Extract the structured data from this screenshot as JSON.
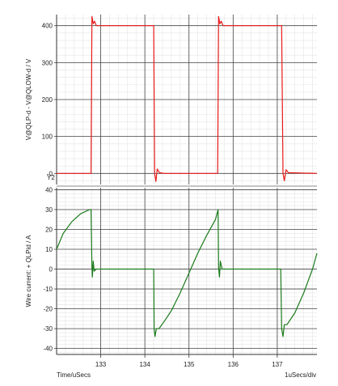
{
  "chart_data": [
    {
      "type": "line",
      "ylabel": "V@QLP-d - V@QLOW-d / V",
      "ylim": [
        -30,
        430
      ],
      "yticks": [
        400,
        300,
        200,
        100,
        0
      ],
      "ytick_labels": [
        "400",
        "300",
        "200",
        "100",
        "-0"
      ],
      "corner_label": "Y2",
      "grid": true,
      "series": [
        {
          "color": "#e8191a",
          "x": [
            132.0,
            132.78,
            132.8,
            132.83,
            132.86,
            132.9,
            133.0,
            134.2,
            134.22,
            134.25,
            134.28,
            134.33,
            134.45,
            135.65,
            135.67,
            135.7,
            135.73,
            135.77,
            135.9,
            137.1,
            137.13,
            137.16,
            137.2,
            137.25,
            137.9
          ],
          "y": [
            0,
            0,
            425,
            405,
            412,
            400,
            400,
            400,
            0,
            -22,
            12,
            2,
            0,
            0,
            425,
            405,
            412,
            400,
            400,
            400,
            0,
            -20,
            10,
            2,
            0
          ]
        }
      ]
    },
    {
      "type": "line",
      "ylabel": "Wire current: + QLPid / A",
      "ylim": [
        -43,
        41
      ],
      "yticks": [
        40,
        30,
        20,
        10,
        0,
        -10,
        -20,
        -30,
        -40
      ],
      "ytick_labels": [
        "40",
        "30",
        "20",
        "10",
        "0",
        "-10",
        "-20",
        "-30",
        "-40"
      ],
      "grid": true,
      "series": [
        {
          "color": "#1a7a1a",
          "x": [
            132.0,
            132.15,
            132.35,
            132.55,
            132.75,
            132.78,
            132.8,
            132.81,
            132.83,
            132.85,
            132.9,
            133.0,
            134.2,
            134.21,
            134.23,
            134.26,
            134.32,
            134.45,
            134.6,
            134.8,
            135.0,
            135.2,
            135.4,
            135.6,
            135.66,
            135.67,
            135.69,
            135.71,
            135.75,
            135.85,
            137.08,
            137.1,
            137.13,
            137.16,
            137.22,
            137.4,
            137.6,
            137.8,
            137.9
          ],
          "y": [
            10,
            18,
            24,
            28,
            30,
            30,
            1,
            -4,
            4,
            -1,
            0,
            0,
            0,
            -30,
            -34,
            -30,
            -30,
            -26,
            -21,
            -12,
            -2,
            8,
            17,
            25,
            30,
            1,
            -4,
            4,
            0,
            0,
            0,
            -30,
            -34,
            -28,
            -28,
            -22,
            -12,
            0,
            8
          ]
        }
      ]
    }
  ],
  "xaxis": {
    "xlim": [
      132.0,
      137.9
    ],
    "xticks": [
      133,
      134,
      135,
      136,
      137
    ],
    "xtick_labels": [
      "133",
      "134",
      "135",
      "136",
      "137"
    ],
    "xlabel": "Time/uSecs",
    "scale_label": "1uSecs/div"
  }
}
